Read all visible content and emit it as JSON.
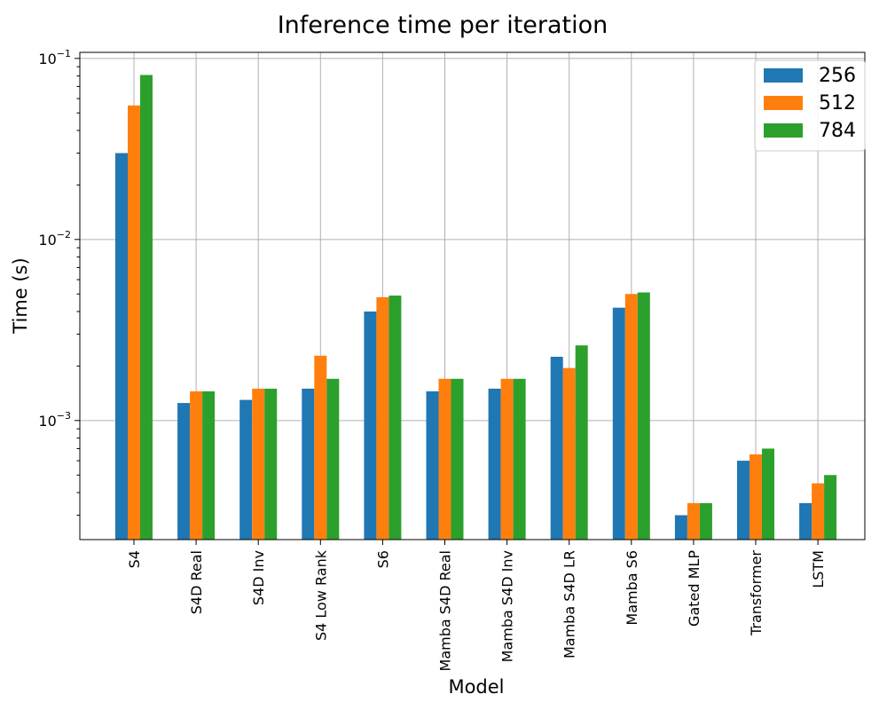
{
  "chart_data": {
    "type": "bar",
    "title": "Inference time per iteration",
    "xlabel": "Model",
    "ylabel": "Time (s)",
    "yscale": "log",
    "ylim": [
      0.00022,
      0.108
    ],
    "yticks": [
      {
        "value": 0.001,
        "base": "10",
        "exp": "−3"
      },
      {
        "value": 0.01,
        "base": "10",
        "exp": "−2"
      },
      {
        "value": 0.1,
        "base": "10",
        "exp": "−1"
      }
    ],
    "grid": true,
    "legend_position": "top-right",
    "categories": [
      "S4",
      "S4D Real",
      "S4D Inv",
      "S4 Low Rank",
      "S6",
      "Mamba S4D Real",
      "Mamba S4D Inv",
      "Mamba S4D LR",
      "Mamba S6",
      "Gated MLP",
      "Transformer",
      "LSTM"
    ],
    "series": [
      {
        "name": "256",
        "color": "#1f77b4",
        "values": [
          0.03,
          0.00125,
          0.0013,
          0.0015,
          0.004,
          0.00145,
          0.0015,
          0.00225,
          0.0042,
          0.0003,
          0.0006,
          0.00035
        ]
      },
      {
        "name": "512",
        "color": "#ff7f0e",
        "values": [
          0.055,
          0.00145,
          0.0015,
          0.00228,
          0.0048,
          0.0017,
          0.0017,
          0.00195,
          0.005,
          0.00035,
          0.00065,
          0.00045
        ]
      },
      {
        "name": "784",
        "color": "#2ca02c",
        "values": [
          0.081,
          0.00145,
          0.0015,
          0.0017,
          0.0049,
          0.0017,
          0.0017,
          0.0026,
          0.0051,
          0.00035,
          0.0007,
          0.0005
        ]
      }
    ]
  }
}
